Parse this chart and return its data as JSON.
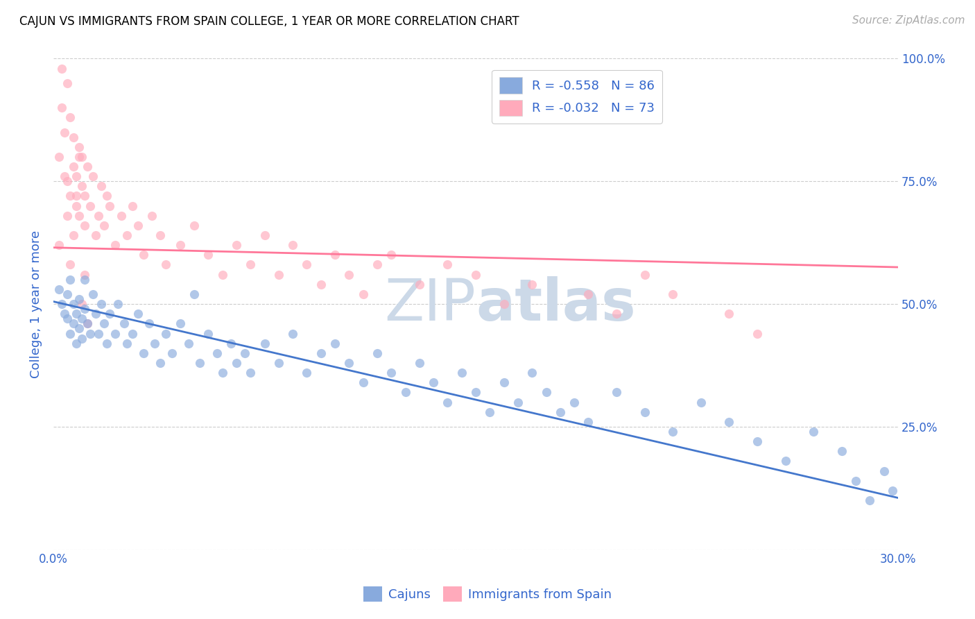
{
  "title": "CAJUN VS IMMIGRANTS FROM SPAIN COLLEGE, 1 YEAR OR MORE CORRELATION CHART",
  "source_text": "Source: ZipAtlas.com",
  "ylabel": "College, 1 year or more",
  "xlim": [
    0.0,
    0.3
  ],
  "ylim": [
    0.0,
    1.0
  ],
  "xtick_vals": [
    0.0,
    0.3
  ],
  "xtick_labels": [
    "0.0%",
    "30.0%"
  ],
  "ytick_vals": [
    0.0,
    0.25,
    0.5,
    0.75,
    1.0
  ],
  "ytick_labels_right": [
    "",
    "25.0%",
    "50.0%",
    "75.0%",
    "100.0%"
  ],
  "legend_blue_label": "R = -0.558   N = 86",
  "legend_pink_label": "R = -0.032   N = 73",
  "bottom_legend_labels": [
    "Cajuns",
    "Immigrants from Spain"
  ],
  "blue_color": "#88aadd",
  "pink_color": "#ffaabb",
  "blue_line_color": "#4477cc",
  "pink_line_color": "#ff7799",
  "legend_text_color": "#3366cc",
  "axis_label_color": "#3366cc",
  "tick_color": "#3366cc",
  "watermark_color": "#ccd9e8",
  "grid_color": "#cccccc",
  "blue_line_x": [
    0.0,
    0.3
  ],
  "blue_line_y": [
    0.505,
    0.105
  ],
  "pink_line_x": [
    0.0,
    0.3
  ],
  "pink_line_y": [
    0.615,
    0.575
  ],
  "blue_scatter_x": [
    0.002,
    0.003,
    0.004,
    0.005,
    0.005,
    0.006,
    0.006,
    0.007,
    0.007,
    0.008,
    0.008,
    0.009,
    0.009,
    0.01,
    0.01,
    0.011,
    0.011,
    0.012,
    0.013,
    0.014,
    0.015,
    0.016,
    0.017,
    0.018,
    0.019,
    0.02,
    0.022,
    0.023,
    0.025,
    0.026,
    0.028,
    0.03,
    0.032,
    0.034,
    0.036,
    0.038,
    0.04,
    0.042,
    0.045,
    0.048,
    0.05,
    0.052,
    0.055,
    0.058,
    0.06,
    0.063,
    0.065,
    0.068,
    0.07,
    0.075,
    0.08,
    0.085,
    0.09,
    0.095,
    0.1,
    0.105,
    0.11,
    0.115,
    0.12,
    0.125,
    0.13,
    0.135,
    0.14,
    0.145,
    0.15,
    0.155,
    0.16,
    0.165,
    0.17,
    0.175,
    0.18,
    0.185,
    0.19,
    0.2,
    0.21,
    0.22,
    0.23,
    0.24,
    0.25,
    0.26,
    0.27,
    0.28,
    0.285,
    0.29,
    0.295,
    0.298
  ],
  "blue_scatter_y": [
    0.53,
    0.5,
    0.48,
    0.52,
    0.47,
    0.55,
    0.44,
    0.5,
    0.46,
    0.48,
    0.42,
    0.45,
    0.51,
    0.47,
    0.43,
    0.55,
    0.49,
    0.46,
    0.44,
    0.52,
    0.48,
    0.44,
    0.5,
    0.46,
    0.42,
    0.48,
    0.44,
    0.5,
    0.46,
    0.42,
    0.44,
    0.48,
    0.4,
    0.46,
    0.42,
    0.38,
    0.44,
    0.4,
    0.46,
    0.42,
    0.52,
    0.38,
    0.44,
    0.4,
    0.36,
    0.42,
    0.38,
    0.4,
    0.36,
    0.42,
    0.38,
    0.44,
    0.36,
    0.4,
    0.42,
    0.38,
    0.34,
    0.4,
    0.36,
    0.32,
    0.38,
    0.34,
    0.3,
    0.36,
    0.32,
    0.28,
    0.34,
    0.3,
    0.36,
    0.32,
    0.28,
    0.3,
    0.26,
    0.32,
    0.28,
    0.24,
    0.3,
    0.26,
    0.22,
    0.18,
    0.24,
    0.2,
    0.14,
    0.1,
    0.16,
    0.12
  ],
  "pink_scatter_x": [
    0.002,
    0.003,
    0.004,
    0.005,
    0.005,
    0.006,
    0.006,
    0.007,
    0.007,
    0.008,
    0.008,
    0.009,
    0.009,
    0.01,
    0.01,
    0.011,
    0.011,
    0.012,
    0.013,
    0.014,
    0.015,
    0.016,
    0.017,
    0.018,
    0.019,
    0.02,
    0.022,
    0.024,
    0.026,
    0.028,
    0.03,
    0.032,
    0.035,
    0.038,
    0.04,
    0.045,
    0.05,
    0.055,
    0.06,
    0.065,
    0.07,
    0.075,
    0.08,
    0.085,
    0.09,
    0.095,
    0.1,
    0.105,
    0.11,
    0.115,
    0.12,
    0.13,
    0.14,
    0.15,
    0.16,
    0.17,
    0.19,
    0.2,
    0.21,
    0.22,
    0.24,
    0.25,
    0.002,
    0.003,
    0.004,
    0.005,
    0.006,
    0.007,
    0.008,
    0.009,
    0.01,
    0.011,
    0.012
  ],
  "pink_scatter_y": [
    0.8,
    0.9,
    0.85,
    0.75,
    0.95,
    0.72,
    0.88,
    0.78,
    0.84,
    0.7,
    0.76,
    0.82,
    0.68,
    0.74,
    0.8,
    0.66,
    0.72,
    0.78,
    0.7,
    0.76,
    0.64,
    0.68,
    0.74,
    0.66,
    0.72,
    0.7,
    0.62,
    0.68,
    0.64,
    0.7,
    0.66,
    0.6,
    0.68,
    0.64,
    0.58,
    0.62,
    0.66,
    0.6,
    0.56,
    0.62,
    0.58,
    0.64,
    0.56,
    0.62,
    0.58,
    0.54,
    0.6,
    0.56,
    0.52,
    0.58,
    0.6,
    0.54,
    0.58,
    0.56,
    0.5,
    0.54,
    0.52,
    0.48,
    0.56,
    0.52,
    0.48,
    0.44,
    0.62,
    0.98,
    0.76,
    0.68,
    0.58,
    0.64,
    0.72,
    0.8,
    0.5,
    0.56,
    0.46
  ],
  "figsize": [
    14.06,
    8.92
  ],
  "dpi": 100
}
